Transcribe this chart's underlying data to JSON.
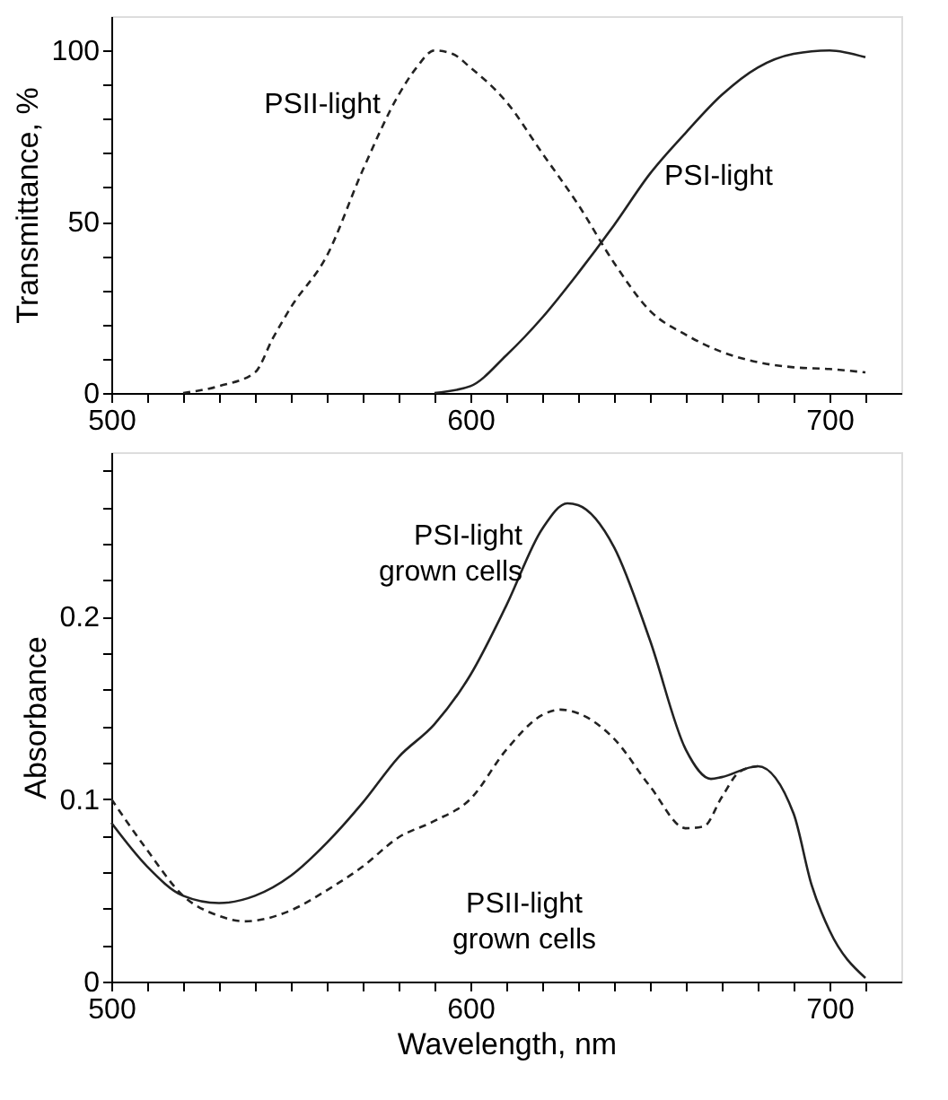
{
  "chart_data": [
    {
      "type": "line",
      "ylabel": "Transmittance, %",
      "xlim": [
        500,
        720
      ],
      "ylim": [
        0,
        110
      ],
      "xticks": [
        500,
        {
          "value": 510,
          "label": null
        },
        {
          "value": 520,
          "label": null
        },
        {
          "value": 530,
          "label": null
        },
        {
          "value": 540,
          "label": null
        },
        {
          "value": 550,
          "label": null
        },
        {
          "value": 560,
          "label": null
        },
        {
          "value": 570,
          "label": null
        },
        {
          "value": 580,
          "label": null
        },
        {
          "value": 590,
          "label": null
        },
        600,
        {
          "value": 610,
          "label": null
        },
        {
          "value": 620,
          "label": null
        },
        {
          "value": 630,
          "label": null
        },
        {
          "value": 640,
          "label": null
        },
        {
          "value": 650,
          "label": null
        },
        {
          "value": 660,
          "label": null
        },
        {
          "value": 670,
          "label": null
        },
        {
          "value": 680,
          "label": null
        },
        {
          "value": 690,
          "label": null
        },
        700,
        {
          "value": 710,
          "label": null
        }
      ],
      "yticks": [
        0,
        {
          "value": 10,
          "label": null
        },
        {
          "value": 20,
          "label": null
        },
        {
          "value": 30,
          "label": null
        },
        {
          "value": 40,
          "label": null
        },
        50,
        {
          "value": 60,
          "label": null
        },
        {
          "value": 70,
          "label": null
        },
        {
          "value": 80,
          "label": null
        },
        {
          "value": 90,
          "label": null
        },
        100
      ],
      "grid": false,
      "legend": false,
      "series": [
        {
          "name": "PSII-light",
          "color": "#222222",
          "line_style": "dashed",
          "x": [
            520,
            530,
            540,
            545,
            550,
            560,
            570,
            580,
            585,
            590,
            595,
            600,
            610,
            620,
            630,
            640,
            650,
            660,
            670,
            680,
            690,
            700,
            710
          ],
          "values": [
            0,
            2,
            6,
            16,
            25,
            40,
            65,
            87,
            95,
            100,
            99,
            95,
            85,
            70,
            55,
            38,
            24,
            17,
            12,
            9,
            7.5,
            7,
            6
          ]
        },
        {
          "name": "PSI-light",
          "color": "#222222",
          "line_style": "solid",
          "x": [
            590,
            600,
            610,
            620,
            630,
            640,
            650,
            660,
            670,
            680,
            690,
            700,
            710
          ],
          "values": [
            0,
            2,
            11,
            22,
            35,
            49,
            64,
            76,
            87,
            95,
            99,
            100,
            98
          ]
        }
      ]
    },
    {
      "type": "line",
      "xlabel": "Wavelength, nm",
      "ylabel": "Absorbance",
      "xlim": [
        500,
        720
      ],
      "ylim": [
        0,
        0.29
      ],
      "xticks": [
        500,
        {
          "value": 510,
          "label": null
        },
        {
          "value": 520,
          "label": null
        },
        {
          "value": 530,
          "label": null
        },
        {
          "value": 540,
          "label": null
        },
        {
          "value": 550,
          "label": null
        },
        {
          "value": 560,
          "label": null
        },
        {
          "value": 570,
          "label": null
        },
        {
          "value": 580,
          "label": null
        },
        {
          "value": 590,
          "label": null
        },
        600,
        {
          "value": 610,
          "label": null
        },
        {
          "value": 620,
          "label": null
        },
        {
          "value": 630,
          "label": null
        },
        {
          "value": 640,
          "label": null
        },
        {
          "value": 650,
          "label": null
        },
        {
          "value": 660,
          "label": null
        },
        {
          "value": 670,
          "label": null
        },
        {
          "value": 680,
          "label": null
        },
        {
          "value": 690,
          "label": null
        },
        700,
        {
          "value": 710,
          "label": null
        }
      ],
      "yticks": [
        0,
        {
          "value": 0.02,
          "label": null
        },
        {
          "value": 0.04,
          "label": null
        },
        {
          "value": 0.06,
          "label": null
        },
        {
          "value": 0.08,
          "label": null
        },
        0.1,
        {
          "value": 0.12,
          "label": null
        },
        {
          "value": 0.14,
          "label": null
        },
        {
          "value": 0.16,
          "label": null
        },
        {
          "value": 0.18,
          "label": null
        },
        0.2,
        {
          "value": 0.22,
          "label": null
        },
        {
          "value": 0.24,
          "label": null
        },
        {
          "value": 0.26,
          "label": null
        },
        {
          "value": 0.28,
          "label": null
        }
      ],
      "grid": false,
      "legend": false,
      "series": [
        {
          "name": "PSI-light\ngrown cells",
          "color": "#222222",
          "line_style": "solid",
          "x": [
            500,
            510,
            520,
            530,
            540,
            550,
            560,
            570,
            580,
            590,
            600,
            610,
            620,
            627,
            630,
            640,
            650,
            660,
            667,
            670,
            680,
            690,
            695,
            700,
            710
          ],
          "values": [
            0.087,
            0.063,
            0.047,
            0.043,
            0.047,
            0.058,
            0.076,
            0.098,
            0.123,
            0.141,
            0.168,
            0.206,
            0.248,
            0.262,
            0.261,
            0.238,
            0.187,
            0.127,
            0.111,
            0.112,
            0.118,
            0.092,
            0.053,
            0.028,
            0.002
          ]
        },
        {
          "name": "PSII-light\ngrown cells",
          "color": "#222222",
          "line_style": "dashed",
          "x": [
            500,
            510,
            520,
            530,
            537,
            550,
            560,
            570,
            580,
            590,
            600,
            610,
            620,
            625,
            630,
            640,
            650,
            660,
            665,
            670,
            675,
            680
          ],
          "values": [
            0.1,
            0.072,
            0.047,
            0.036,
            0.033,
            0.039,
            0.05,
            0.063,
            0.079,
            0.088,
            0.1,
            0.127,
            0.146,
            0.149,
            0.147,
            0.133,
            0.107,
            0.084,
            0.085,
            0.101,
            0.115,
            0.118
          ]
        }
      ]
    }
  ]
}
